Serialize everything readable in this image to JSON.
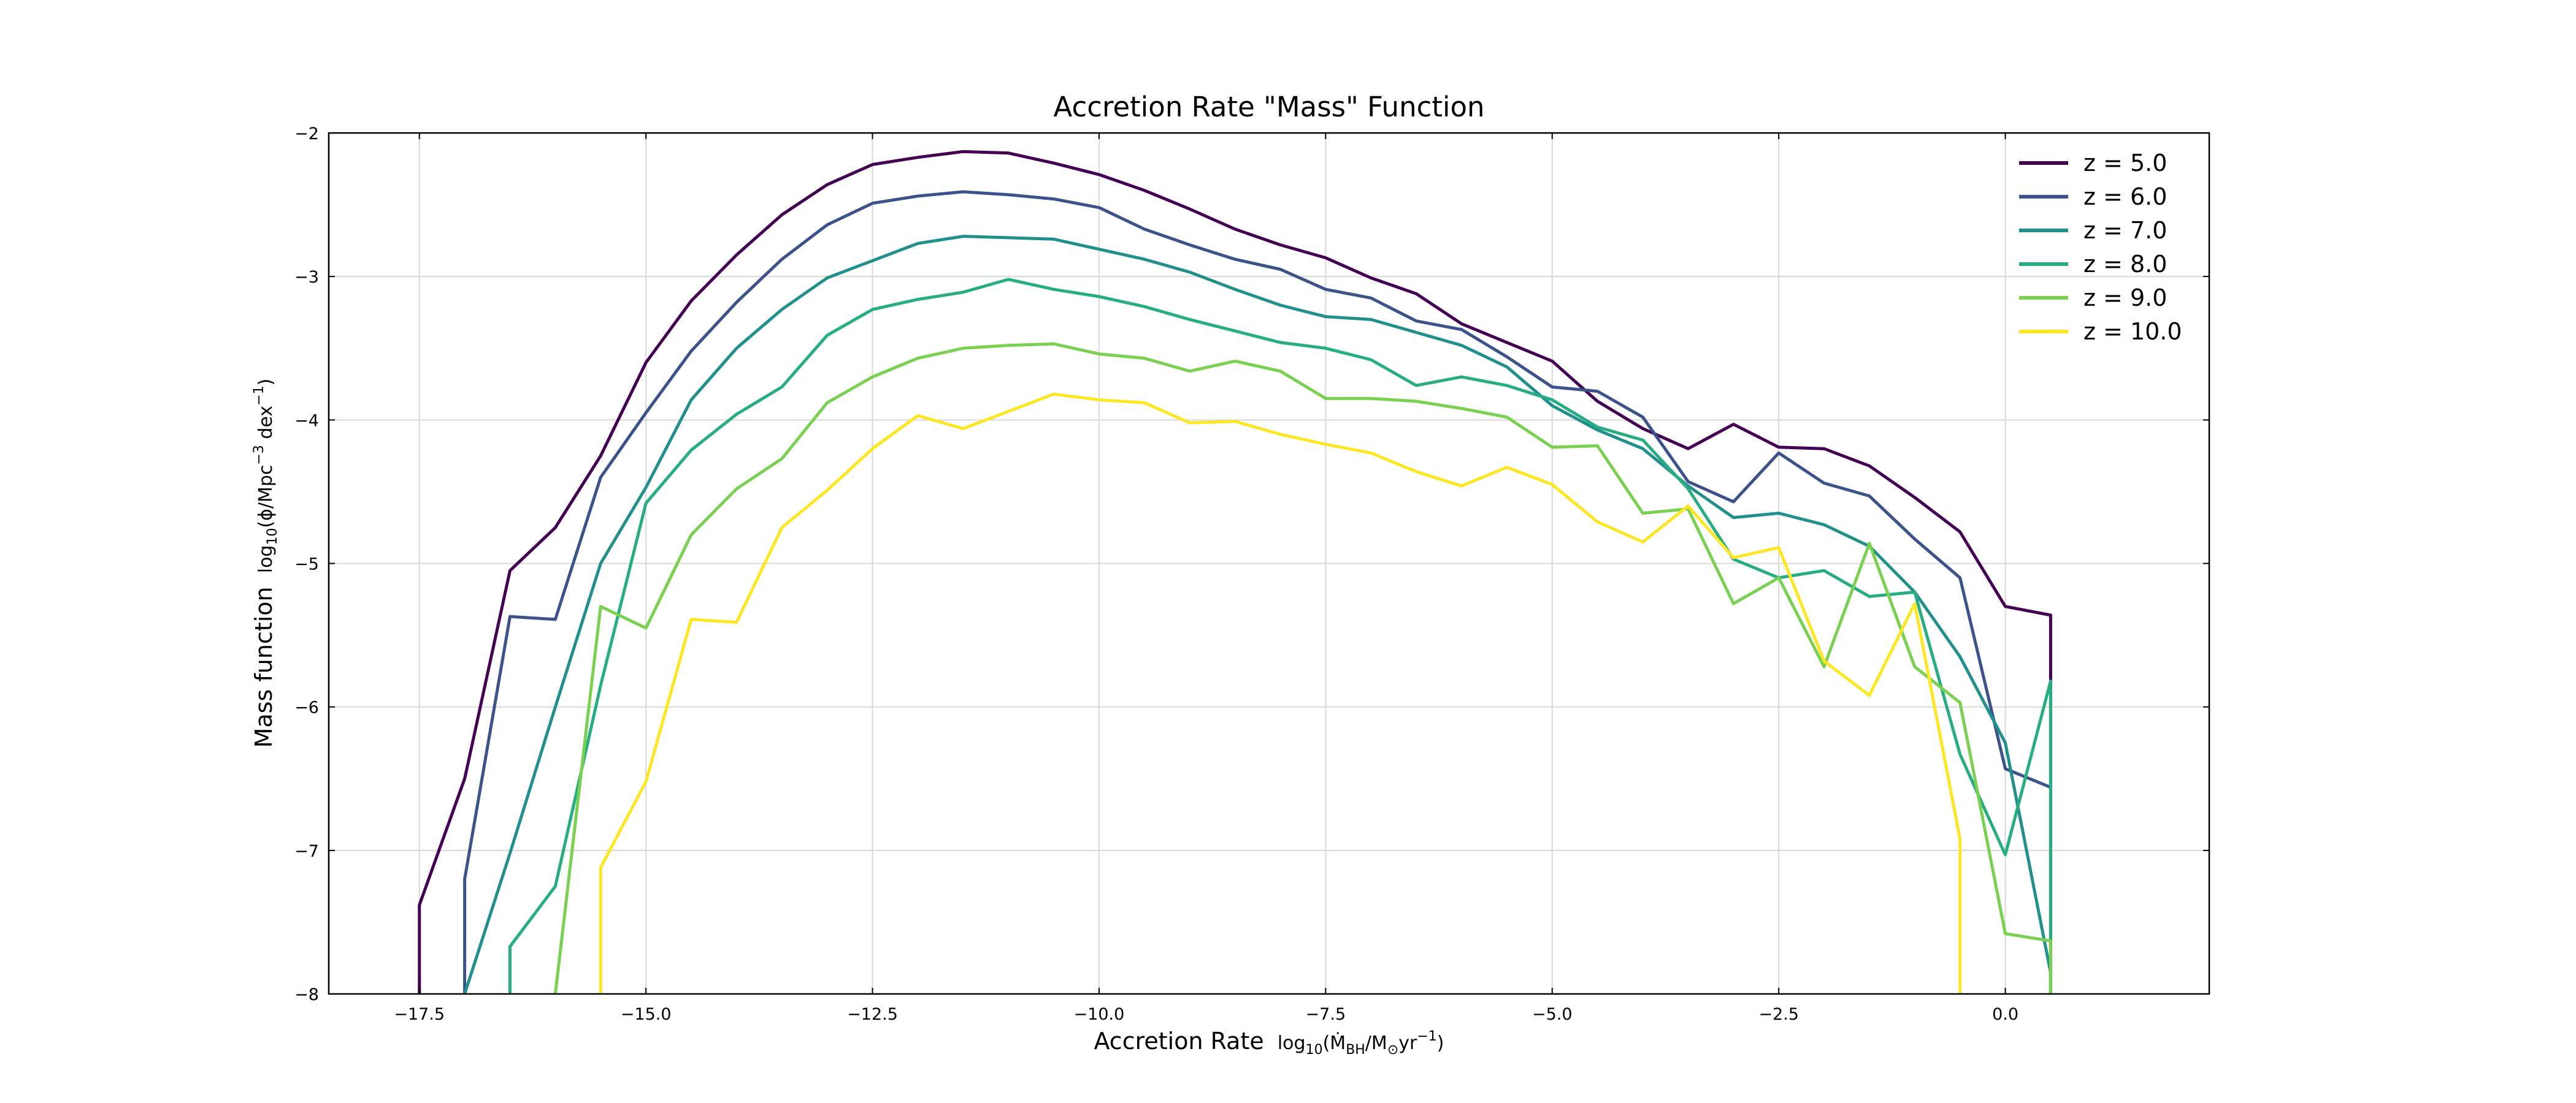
{
  "chart_data": {
    "type": "line",
    "title": "Accretion Rate \"Mass\" Function",
    "xlabel": {
      "main": "Accretion Rate",
      "unit_prefix": "log",
      "unit_base": "10",
      "unit_open": "(",
      "unit_mdot": "Ṁ",
      "unit_sub": "BH",
      "unit_mid": "/M",
      "unit_sun": "⊙",
      "unit_yr": "yr",
      "unit_exp": "−1",
      "unit_close": ")"
    },
    "ylabel": {
      "main": "Mass function",
      "unit_prefix": "log",
      "unit_base": "10",
      "unit_open": "(ϕ/Mpc",
      "unit_exp1": "−3",
      "unit_mid": " dex",
      "unit_exp2": "−1",
      "unit_close": ")"
    },
    "xlim": [
      -18.5,
      2.25
    ],
    "ylim": [
      -8,
      -2
    ],
    "xticks": [
      {
        "value": -17.5,
        "label": "−17.5"
      },
      {
        "value": -15.0,
        "label": "−15.0"
      },
      {
        "value": -12.5,
        "label": "−12.5"
      },
      {
        "value": -10.0,
        "label": "−10.0"
      },
      {
        "value": -7.5,
        "label": "−7.5"
      },
      {
        "value": -5.0,
        "label": "−5.0"
      },
      {
        "value": -2.5,
        "label": "−2.5"
      },
      {
        "value": 0.0,
        "label": "0.0"
      }
    ],
    "yticks": [
      {
        "value": -8,
        "label": "−8"
      },
      {
        "value": -7,
        "label": "−7"
      },
      {
        "value": -6,
        "label": "−6"
      },
      {
        "value": -5,
        "label": "−5"
      },
      {
        "value": -4,
        "label": "−4"
      },
      {
        "value": -3,
        "label": "−3"
      },
      {
        "value": -2,
        "label": "−2"
      }
    ],
    "grid": true,
    "legend_position": "top-right",
    "series": [
      {
        "name": "z = 5.0",
        "color": "#440154",
        "x": [
          -17.5,
          -17.5,
          -17.0,
          -16.5,
          -16.0,
          -15.5,
          -15.0,
          -14.5,
          -14.0,
          -13.5,
          -13.0,
          -12.5,
          -12.0,
          -11.5,
          -11.0,
          -10.5,
          -10.0,
          -9.5,
          -9.0,
          -8.5,
          -8.0,
          -7.5,
          -7.0,
          -6.5,
          -6.0,
          -5.5,
          -5.0,
          -4.5,
          -4.0,
          -3.5,
          -3.0,
          -2.5,
          -2.0,
          -1.5,
          -1.0,
          -0.5,
          0.0,
          0.5,
          0.5
        ],
        "y": [
          -8.0,
          -7.38,
          -6.5,
          -5.05,
          -4.75,
          -4.25,
          -3.6,
          -3.17,
          -2.85,
          -2.57,
          -2.36,
          -2.22,
          -2.17,
          -2.13,
          -2.14,
          -2.21,
          -2.29,
          -2.4,
          -2.53,
          -2.67,
          -2.78,
          -2.87,
          -3.01,
          -3.12,
          -3.33,
          -3.46,
          -3.59,
          -3.87,
          -4.06,
          -4.2,
          -4.03,
          -4.19,
          -4.2,
          -4.32,
          -4.54,
          -4.78,
          -5.3,
          -5.36,
          -8.0
        ]
      },
      {
        "name": "z = 6.0",
        "color": "#3b528b",
        "x": [
          -17.0,
          -17.0,
          -16.5,
          -16.0,
          -15.5,
          -15.0,
          -14.5,
          -14.0,
          -13.5,
          -13.0,
          -12.5,
          -12.0,
          -11.5,
          -11.0,
          -10.5,
          -10.0,
          -9.5,
          -9.0,
          -8.5,
          -8.0,
          -7.5,
          -7.0,
          -6.5,
          -6.0,
          -5.5,
          -5.0,
          -4.5,
          -4.0,
          -3.5,
          -3.0,
          -2.5,
          -2.0,
          -1.5,
          -1.0,
          -0.5,
          0.0,
          0.5
        ],
        "y": [
          -8.0,
          -7.2,
          -5.37,
          -5.39,
          -4.4,
          -3.95,
          -3.52,
          -3.18,
          -2.88,
          -2.64,
          -2.49,
          -2.44,
          -2.41,
          -2.43,
          -2.46,
          -2.52,
          -2.67,
          -2.78,
          -2.88,
          -2.95,
          -3.09,
          -3.15,
          -3.31,
          -3.37,
          -3.56,
          -3.77,
          -3.8,
          -3.98,
          -4.43,
          -4.57,
          -4.23,
          -4.44,
          -4.53,
          -4.83,
          -5.1,
          -6.43,
          -6.56
        ]
      },
      {
        "name": "z = 7.0",
        "color": "#21908c",
        "x": [
          -17.0,
          -16.5,
          -16.0,
          -15.5,
          -15.0,
          -14.5,
          -14.0,
          -13.5,
          -13.0,
          -12.5,
          -12.0,
          -11.5,
          -11.0,
          -10.5,
          -10.0,
          -9.5,
          -9.0,
          -8.5,
          -8.0,
          -7.5,
          -7.0,
          -6.5,
          -6.0,
          -5.5,
          -5.0,
          -4.5,
          -4.0,
          -3.5,
          -3.0,
          -2.5,
          -2.0,
          -1.5,
          -1.0,
          -0.5,
          0.0,
          0.5,
          0.5
        ],
        "y": [
          -8.0,
          -7.02,
          -6.0,
          -5.0,
          -4.47,
          -3.86,
          -3.5,
          -3.23,
          -3.01,
          -2.89,
          -2.77,
          -2.72,
          -2.73,
          -2.74,
          -2.81,
          -2.88,
          -2.97,
          -3.09,
          -3.2,
          -3.28,
          -3.3,
          -3.39,
          -3.48,
          -3.63,
          -3.9,
          -4.07,
          -4.2,
          -4.46,
          -4.68,
          -4.65,
          -4.73,
          -4.88,
          -5.2,
          -5.65,
          -6.25,
          -7.85,
          -8.0
        ]
      },
      {
        "name": "z = 8.0",
        "color": "#27ad81",
        "x": [
          -16.5,
          -16.5,
          -16.0,
          -15.5,
          -15.0,
          -14.5,
          -14.0,
          -13.5,
          -13.0,
          -12.5,
          -12.0,
          -11.5,
          -11.0,
          -10.5,
          -10.0,
          -9.5,
          -9.0,
          -8.5,
          -8.0,
          -7.5,
          -7.0,
          -6.5,
          -6.0,
          -5.5,
          -5.0,
          -4.5,
          -4.0,
          -3.5,
          -3.0,
          -2.5,
          -2.0,
          -1.5,
          -1.0,
          -0.5,
          0.0,
          0.5,
          0.5
        ],
        "y": [
          -8.0,
          -7.67,
          -7.25,
          -5.85,
          -4.58,
          -4.21,
          -3.96,
          -3.77,
          -3.41,
          -3.23,
          -3.16,
          -3.11,
          -3.02,
          -3.09,
          -3.14,
          -3.21,
          -3.3,
          -3.38,
          -3.46,
          -3.5,
          -3.58,
          -3.76,
          -3.7,
          -3.76,
          -3.86,
          -4.05,
          -4.14,
          -4.48,
          -4.97,
          -5.1,
          -5.05,
          -5.23,
          -5.2,
          -6.33,
          -7.03,
          -5.82,
          -8.0
        ]
      },
      {
        "name": "z = 9.0",
        "color": "#7ad151",
        "x": [
          -16.0,
          -15.5,
          -15.0,
          -14.5,
          -14.0,
          -13.5,
          -13.0,
          -12.5,
          -12.0,
          -11.5,
          -11.0,
          -10.5,
          -10.0,
          -9.5,
          -9.0,
          -8.5,
          -8.0,
          -7.5,
          -7.0,
          -6.5,
          -6.0,
          -5.5,
          -5.0,
          -4.5,
          -4.0,
          -3.5,
          -3.0,
          -2.5,
          -2.0,
          -1.5,
          -1.0,
          -0.5,
          0.0,
          0.5,
          0.5
        ],
        "y": [
          -8.0,
          -5.3,
          -5.45,
          -4.8,
          -4.48,
          -4.27,
          -3.88,
          -3.7,
          -3.57,
          -3.5,
          -3.48,
          -3.47,
          -3.54,
          -3.57,
          -3.66,
          -3.59,
          -3.66,
          -3.85,
          -3.85,
          -3.87,
          -3.92,
          -3.98,
          -4.19,
          -4.18,
          -4.65,
          -4.62,
          -5.28,
          -5.1,
          -5.72,
          -4.86,
          -5.72,
          -5.97,
          -7.58,
          -7.63,
          -8.0
        ]
      },
      {
        "name": "z = 10.0",
        "color": "#fde725",
        "x": [
          -15.5,
          -15.5,
          -15.0,
          -14.5,
          -14.0,
          -13.5,
          -13.0,
          -12.5,
          -12.0,
          -11.5,
          -11.0,
          -10.5,
          -10.0,
          -9.5,
          -9.0,
          -8.5,
          -8.0,
          -7.5,
          -7.0,
          -6.5,
          -6.0,
          -5.5,
          -5.0,
          -4.5,
          -4.0,
          -3.5,
          -3.0,
          -2.5,
          -2.0,
          -1.5,
          -1.0,
          -0.5,
          -0.5
        ],
        "y": [
          -8.0,
          -7.12,
          -6.52,
          -5.39,
          -5.41,
          -4.75,
          -4.49,
          -4.2,
          -3.97,
          -4.06,
          -3.94,
          -3.82,
          -3.86,
          -3.88,
          -4.02,
          -4.01,
          -4.1,
          -4.17,
          -4.23,
          -4.36,
          -4.46,
          -4.33,
          -4.45,
          -4.71,
          -4.85,
          -4.6,
          -4.96,
          -4.89,
          -5.68,
          -5.92,
          -5.28,
          -6.92,
          -8.0
        ]
      }
    ]
  }
}
